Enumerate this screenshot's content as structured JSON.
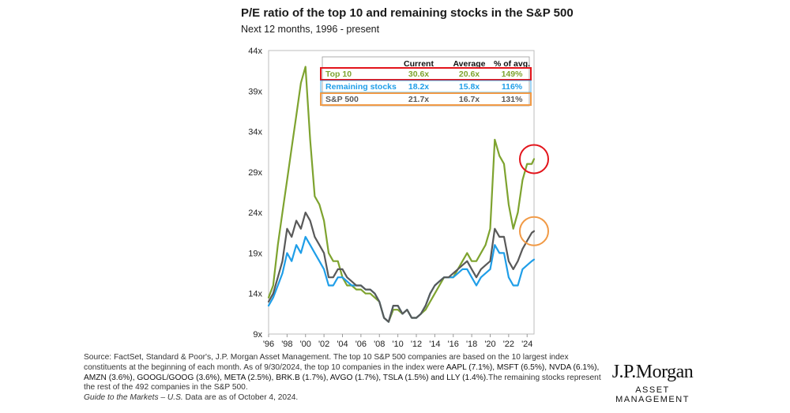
{
  "title": "P/E ratio of the top 10 and remaining stocks in the S&P 500",
  "subtitle": "Next 12 months, 1996 - present",
  "colors": {
    "top10": "#7ea32f",
    "remaining": "#1f9ee8",
    "sp500": "#595959",
    "red": "#e3141b",
    "orange": "#f19a46"
  },
  "chart_data": {
    "type": "line",
    "x_start": 1996,
    "x_end": 2024.75,
    "xticks": [
      1996,
      1998,
      2000,
      2002,
      2004,
      2006,
      2008,
      2010,
      2012,
      2014,
      2016,
      2018,
      2020,
      2022,
      2024
    ],
    "xtick_labels": [
      "'96",
      "'98",
      "'00",
      "'02",
      "'04",
      "'06",
      "'08",
      "'10",
      "'12",
      "'14",
      "'16",
      "'18",
      "'20",
      "'22",
      "'24"
    ],
    "ylim": [
      9,
      44
    ],
    "yticks": [
      9,
      14,
      19,
      24,
      29,
      34,
      39,
      44
    ],
    "ytick_labels": [
      "9x",
      "14x",
      "19x",
      "24x",
      "29x",
      "34x",
      "39x",
      "44x"
    ],
    "series": [
      {
        "name": "Top 10",
        "key": "top10",
        "x": [
          1996,
          1996.5,
          1997,
          1997.5,
          1998,
          1998.5,
          1999,
          1999.5,
          2000,
          2000.5,
          2001,
          2001.5,
          2002,
          2002.5,
          2003,
          2003.5,
          2004,
          2004.5,
          2005,
          2005.5,
          2006,
          2006.5,
          2007,
          2007.5,
          2008,
          2008.5,
          2009,
          2009.5,
          2010,
          2010.5,
          2011,
          2011.5,
          2012,
          2012.5,
          2013,
          2013.5,
          2014,
          2014.5,
          2015,
          2015.5,
          2016,
          2016.5,
          2017,
          2017.5,
          2018,
          2018.5,
          2019,
          2019.5,
          2020,
          2020.5,
          2021,
          2021.5,
          2022,
          2022.5,
          2023,
          2023.5,
          2024,
          2024.5,
          2024.75
        ],
        "values": [
          13.5,
          15,
          20,
          24,
          28,
          32,
          36,
          40,
          42,
          33,
          26,
          25,
          23,
          19,
          18,
          18,
          16,
          15,
          15,
          14.5,
          14.5,
          14,
          14,
          13.5,
          13,
          11,
          10.5,
          12,
          12,
          11.5,
          12,
          11,
          11,
          11.5,
          12,
          13,
          14,
          15,
          16,
          16,
          16,
          17,
          18,
          19,
          18,
          18,
          19,
          20,
          22,
          33,
          31,
          30,
          25,
          22,
          24,
          28,
          30,
          30,
          30.6
        ]
      },
      {
        "name": "Remaining stocks",
        "key": "remaining",
        "x": [
          1996,
          1996.5,
          1997,
          1997.5,
          1998,
          1998.5,
          1999,
          1999.5,
          2000,
          2000.5,
          2001,
          2001.5,
          2002,
          2002.5,
          2003,
          2003.5,
          2004,
          2004.5,
          2005,
          2005.5,
          2006,
          2006.5,
          2007,
          2007.5,
          2008,
          2008.5,
          2009,
          2009.5,
          2010,
          2010.5,
          2011,
          2011.5,
          2012,
          2012.5,
          2013,
          2013.5,
          2014,
          2014.5,
          2015,
          2015.5,
          2016,
          2016.5,
          2017,
          2017.5,
          2018,
          2018.5,
          2019,
          2019.5,
          2020,
          2020.5,
          2021,
          2021.5,
          2022,
          2022.5,
          2023,
          2023.5,
          2024,
          2024.5,
          2024.75
        ],
        "values": [
          12.5,
          13.5,
          15,
          16.5,
          19,
          18,
          20,
          19,
          21,
          20,
          19,
          18,
          17,
          15,
          15,
          16,
          16,
          15.5,
          15,
          15,
          15,
          14.5,
          14.5,
          14,
          13,
          11,
          10.5,
          12.5,
          12.5,
          11.5,
          12,
          11,
          11,
          11.5,
          12.5,
          14,
          15,
          15.5,
          16,
          16,
          16,
          16.5,
          17,
          17,
          16,
          15,
          16,
          16.5,
          17,
          20,
          19,
          19,
          16,
          15,
          15,
          17,
          17.5,
          18,
          18.2
        ]
      },
      {
        "name": "S&P 500",
        "key": "sp500",
        "x": [
          1996,
          1996.5,
          1997,
          1997.5,
          1998,
          1998.5,
          1999,
          1999.5,
          2000,
          2000.5,
          2001,
          2001.5,
          2002,
          2002.5,
          2003,
          2003.5,
          2004,
          2004.5,
          2005,
          2005.5,
          2006,
          2006.5,
          2007,
          2007.5,
          2008,
          2008.5,
          2009,
          2009.5,
          2010,
          2010.5,
          2011,
          2011.5,
          2012,
          2012.5,
          2013,
          2013.5,
          2014,
          2014.5,
          2015,
          2015.5,
          2016,
          2016.5,
          2017,
          2017.5,
          2018,
          2018.5,
          2019,
          2019.5,
          2020,
          2020.5,
          2021,
          2021.5,
          2022,
          2022.5,
          2023,
          2023.5,
          2024,
          2024.5,
          2024.75
        ],
        "values": [
          13,
          14,
          16,
          18,
          22,
          21,
          23,
          22,
          24,
          23,
          21,
          20,
          19,
          16,
          16,
          17,
          17,
          16,
          15.5,
          15,
          15,
          14.5,
          14.5,
          14,
          13,
          11,
          10.5,
          12.5,
          12.5,
          11.5,
          12,
          11,
          11,
          11.5,
          12.5,
          14,
          15,
          15.5,
          16,
          16,
          16.5,
          17,
          17.5,
          18,
          17,
          16,
          17,
          17.5,
          18,
          22,
          21,
          21,
          18,
          17,
          18,
          19.5,
          20.5,
          21.5,
          21.7
        ]
      }
    ],
    "table": {
      "headers": [
        "",
        "Current",
        "Average",
        "% of avg."
      ],
      "rows": [
        {
          "label": "Top 10",
          "key": "top10",
          "current": "30.6x",
          "average": "20.6x",
          "pct": "149%"
        },
        {
          "label": "Remaining stocks",
          "key": "remaining",
          "current": "18.2x",
          "average": "15.8x",
          "pct": "116%"
        },
        {
          "label": "S&P 500",
          "key": "sp500",
          "current": "21.7x",
          "average": "16.7x",
          "pct": "131%"
        }
      ]
    }
  },
  "source_text": "Source: FactSet, Standard & Poor's, J.P. Morgan Asset Management. The top 10 S&P 500 companies are based on the 10 largest index constituents at the beginning of each month. As of 9/30/2024, the top 10 companies in the index were ",
  "source_companies": "AAPL (7.1%), MSFT (6.5%), NVDA (6.1%), AMZN (3.6%), GOOGL/GOOG (3.6%), META (2.5%), BRK.B (1.7%), AVGO (1.7%), TSLA (1.5%) and LLY (1.4%).",
  "source_tail": "The remaining stocks represent the rest of the 492 companies in the S&P 500.",
  "source_guide": "Guide to the Markets – U.S.",
  "source_date": " Data are as of October 4, 2024.",
  "logo": {
    "name": "J.P.Morgan",
    "sub": "ASSET MANAGEMENT"
  }
}
